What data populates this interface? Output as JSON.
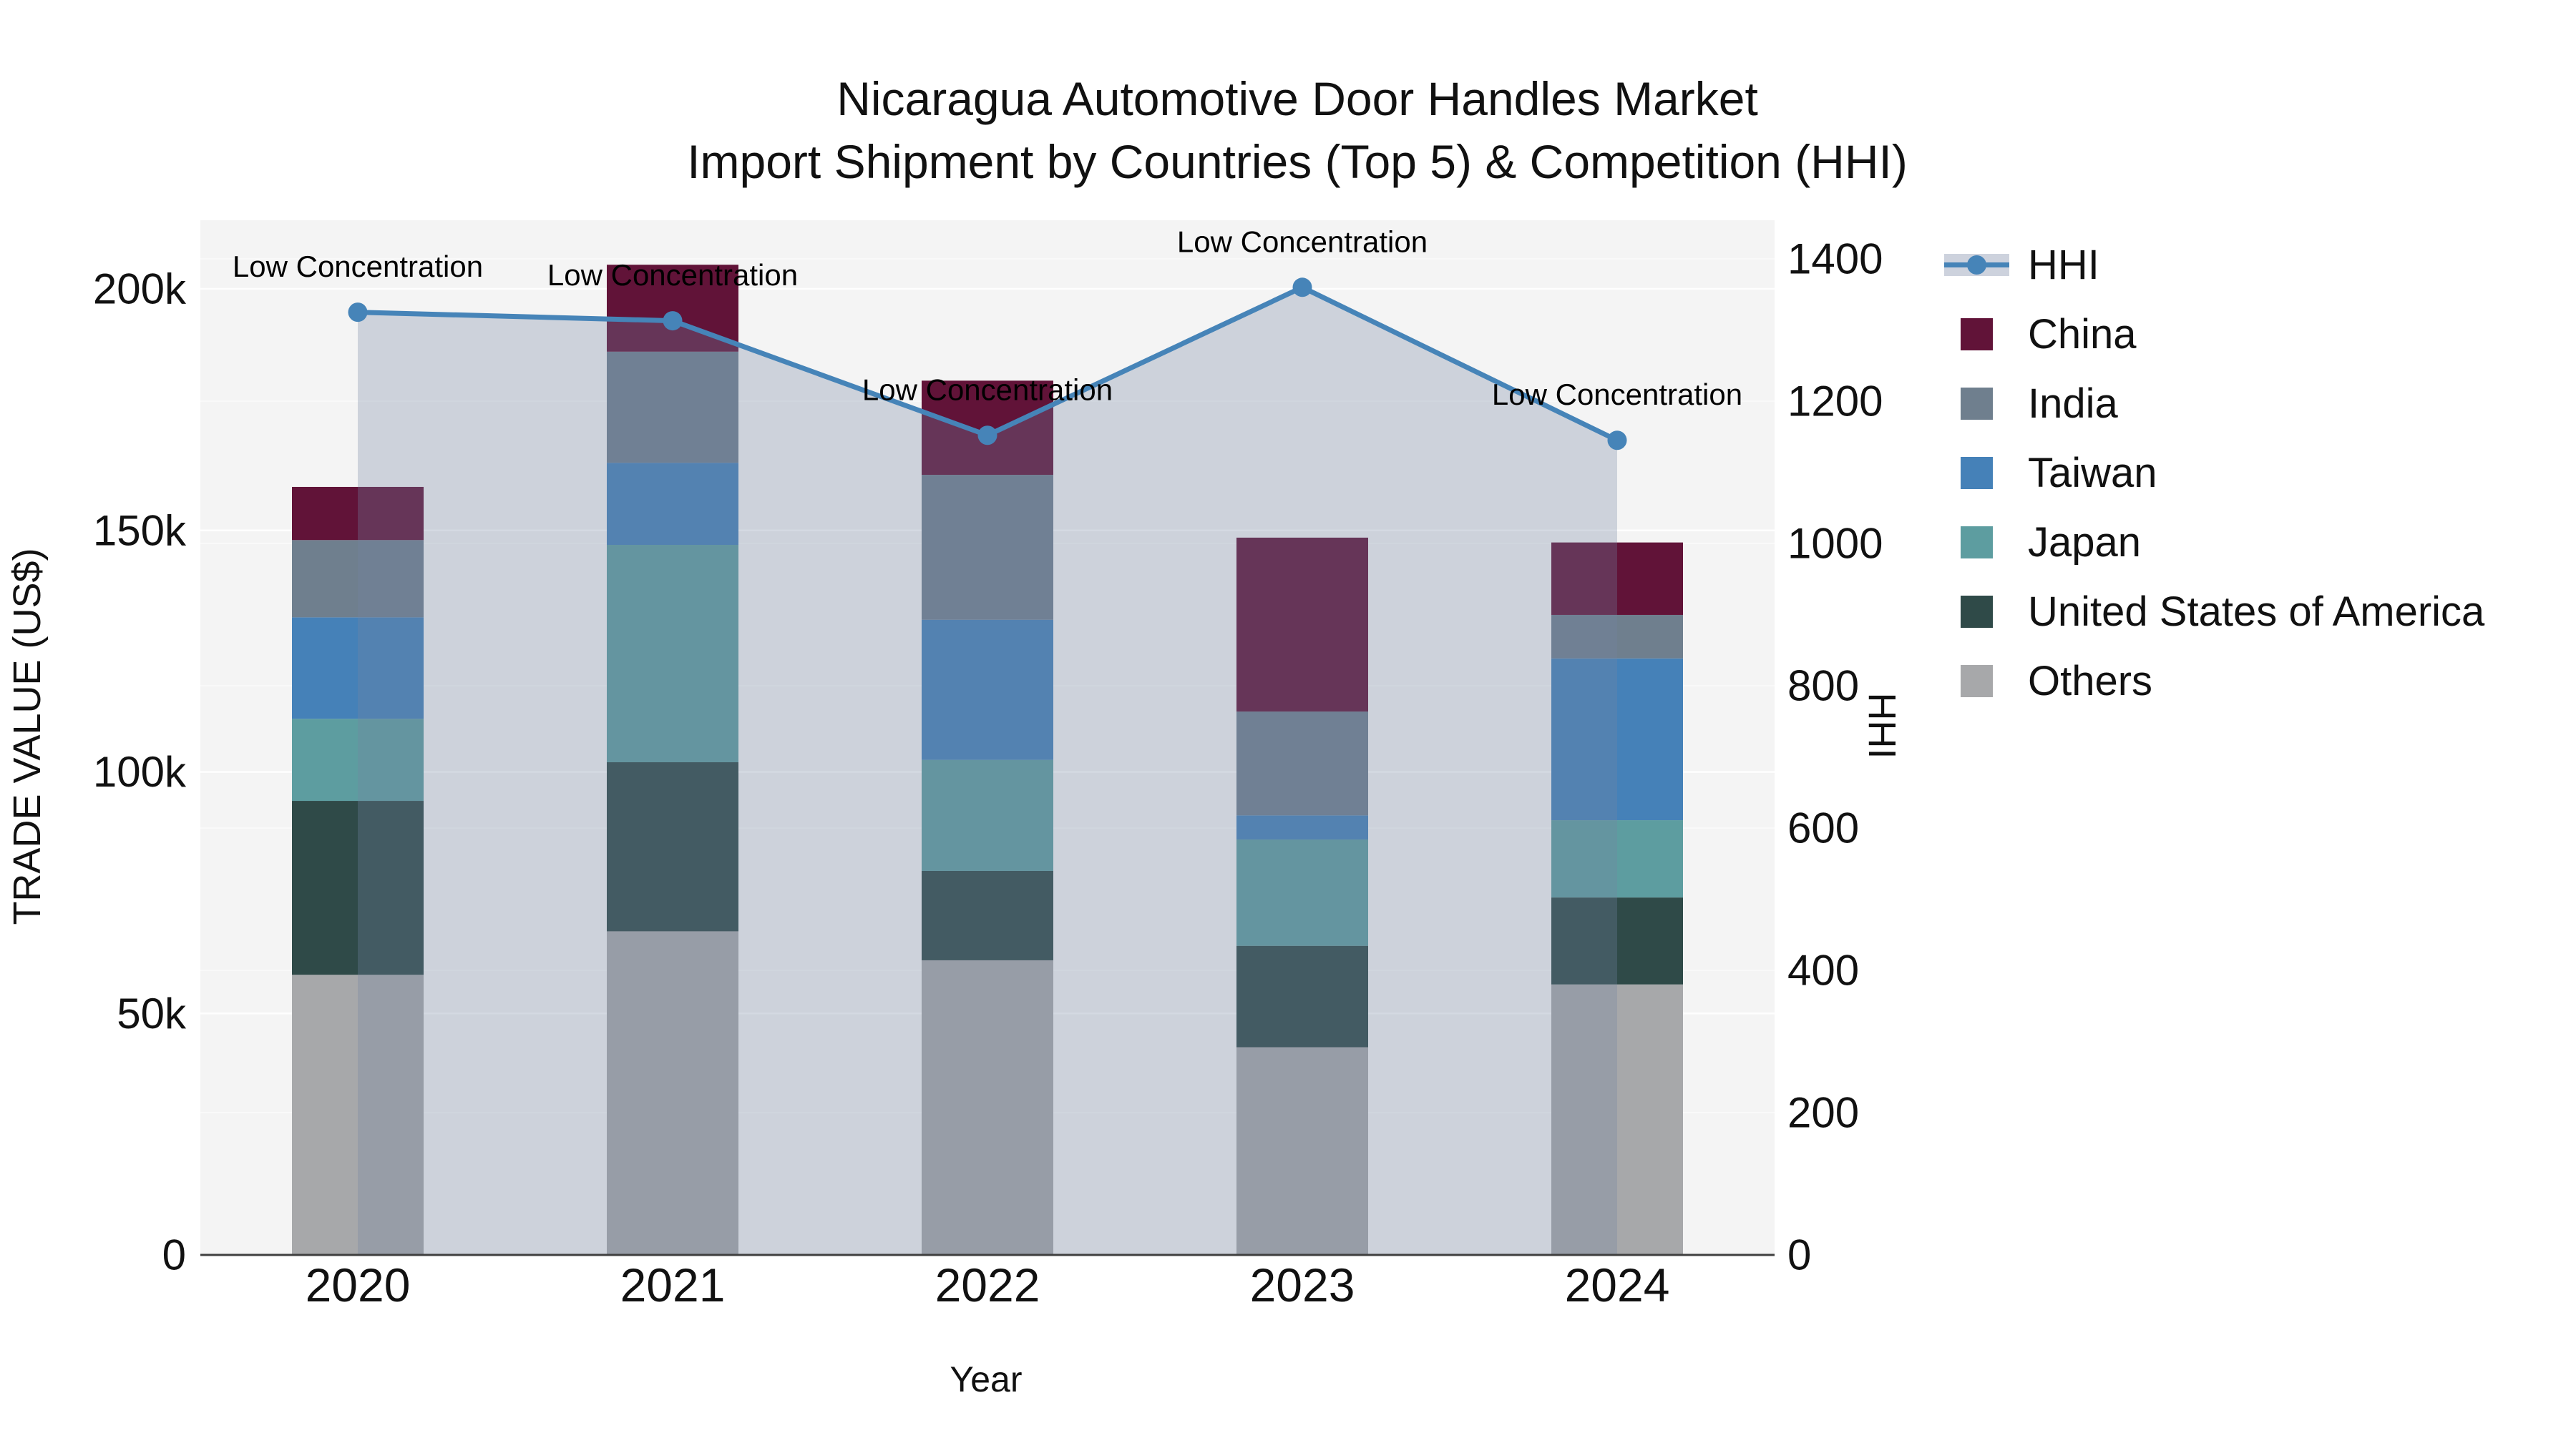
{
  "title": {
    "line1": "Nicaragua Automotive Door Handles Market",
    "line2": "Import Shipment by Countries (Top 5) & Competition (HHI)"
  },
  "axes": {
    "x_title": "Year",
    "y_left_title": "TRADE VALUE (US$)",
    "y_right_title": "HHI",
    "x_tick_labels": [
      "2020",
      "2021",
      "2022",
      "2023",
      "2024"
    ],
    "y_left_tick_labels": [
      "0",
      "50k",
      "100k",
      "150k",
      "200k"
    ],
    "y_right_tick_labels": [
      "0",
      "200",
      "400",
      "600",
      "800",
      "1000",
      "1200",
      "1400"
    ]
  },
  "legend": {
    "items": [
      {
        "label": "HHI",
        "swatch": "line-area",
        "color": "#4684b8"
      },
      {
        "label": "China",
        "swatch": "square",
        "color": "#611338"
      },
      {
        "label": "India",
        "swatch": "square",
        "color": "#6f7f8e"
      },
      {
        "label": "Taiwan",
        "swatch": "square",
        "color": "#4581b8"
      },
      {
        "label": "Japan",
        "swatch": "square",
        "color": "#5d9da0"
      },
      {
        "label": "United States of America",
        "swatch": "square",
        "color": "#2f4a48"
      },
      {
        "label": "Others",
        "swatch": "square",
        "color": "#a7a8aa"
      }
    ]
  },
  "colors": {
    "plot_bg": "#f4f4f4",
    "gridline": "#ffffff",
    "axis_line": "#3f3f3f",
    "text": "#111111",
    "hhi_line": "#4684b8",
    "hhi_area_fill": "rgba(116,132,163,0.30)"
  },
  "chart_data": {
    "type": "combo: stacked-bar (left axis) + line with area fill (right axis)",
    "title": "Nicaragua Automotive Door Handles Market — Import Shipment by Countries (Top 5) & Competition (HHI)",
    "categories": [
      "2020",
      "2021",
      "2022",
      "2023",
      "2024"
    ],
    "xlabel": "Year",
    "y_left_axis": {
      "label": "TRADE VALUE (US$)",
      "min": 0,
      "max": 200000,
      "tick_step": 50000
    },
    "y_right_axis": {
      "label": "HHI",
      "min": 0,
      "max": 1400,
      "tick_step": 200
    },
    "grid": "on",
    "legend_position": "right",
    "stack_order_bottom_to_top": [
      "Others",
      "United States of America",
      "Japan",
      "Taiwan",
      "India",
      "China"
    ],
    "series": [
      {
        "name": "Others",
        "color": "#a7a8aa",
        "values": [
          58000,
          67000,
          61000,
          43000,
          56000
        ]
      },
      {
        "name": "United States of America",
        "color": "#2f4a48",
        "values": [
          36000,
          35000,
          18500,
          21000,
          18000
        ]
      },
      {
        "name": "Japan",
        "color": "#5d9da0",
        "values": [
          17000,
          45000,
          23000,
          22000,
          16000
        ]
      },
      {
        "name": "Taiwan",
        "color": "#4581b8",
        "values": [
          21000,
          17000,
          29000,
          5000,
          33500
        ]
      },
      {
        "name": "India",
        "color": "#6f7f8e",
        "values": [
          16000,
          23000,
          30000,
          21500,
          9000
        ]
      },
      {
        "name": "China",
        "color": "#611338",
        "values": [
          11000,
          18000,
          19500,
          36000,
          15000
        ]
      }
    ],
    "bar_totals": [
      159000,
      205000,
      181000,
      148500,
      147500
    ],
    "hhi_line": {
      "name": "HHI",
      "color": "#4684b8",
      "area_fill": "rgba(116,132,163,0.30)",
      "values": [
        1325,
        1313,
        1152,
        1360,
        1145
      ],
      "point_annotations": [
        "Low Concentration",
        "Low Concentration",
        "Low Concentration",
        "Low Concentration",
        "Low Concentration"
      ]
    }
  }
}
